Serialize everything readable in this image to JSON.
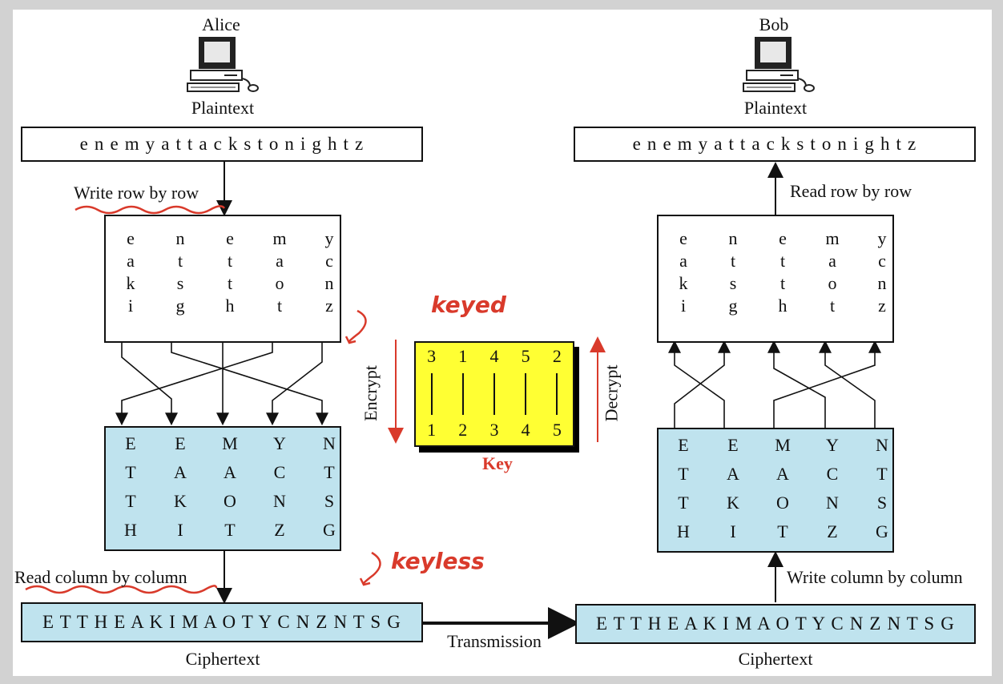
{
  "alice": {
    "name": "Alice",
    "plaintext_label": "Plaintext",
    "plaintext": "e n e m y a t t a c k s t o n i g h t z",
    "write_label": "Write row by row",
    "read_label": "Read column by column",
    "ciphertext": "E T T H E A K I M A O T Y C N Z N T S G",
    "ciphertext_label": "Ciphertext"
  },
  "bob": {
    "name": "Bob",
    "plaintext_label": "Plaintext",
    "plaintext": "e n e m y a t t a c k s t o n i g h t z",
    "read_label": "Read row by row",
    "write_label": "Write column by column",
    "ciphertext": "E T T H E A K I M A O T Y C N Z N T S G",
    "ciphertext_label": "Ciphertext"
  },
  "transmission_label": "Transmission",
  "plain_grid": [
    [
      "e",
      "n",
      "e",
      "m",
      "y"
    ],
    [
      "a",
      "t",
      "t",
      "a",
      "c"
    ],
    [
      "k",
      "s",
      "t",
      "o",
      "n"
    ],
    [
      "i",
      "g",
      "h",
      "t",
      "z"
    ]
  ],
  "cipher_grid": [
    [
      "E",
      "E",
      "M",
      "Y",
      "N"
    ],
    [
      "T",
      "A",
      "A",
      "C",
      "T"
    ],
    [
      "T",
      "K",
      "O",
      "N",
      "S"
    ],
    [
      "H",
      "I",
      "T",
      "Z",
      "G"
    ]
  ],
  "key": {
    "label": "Key",
    "top": [
      "3",
      "1",
      "4",
      "5",
      "2"
    ],
    "bottom": [
      "1",
      "2",
      "3",
      "4",
      "5"
    ],
    "encrypt_label": "Encrypt",
    "decrypt_label": "Decrypt"
  },
  "annotations": {
    "keyed": "keyed",
    "keyless": "keyless"
  },
  "colors": {
    "cipher_fill": "#bfe3ee",
    "key_fill": "#ffff33",
    "annotation": "#d93a2b"
  }
}
